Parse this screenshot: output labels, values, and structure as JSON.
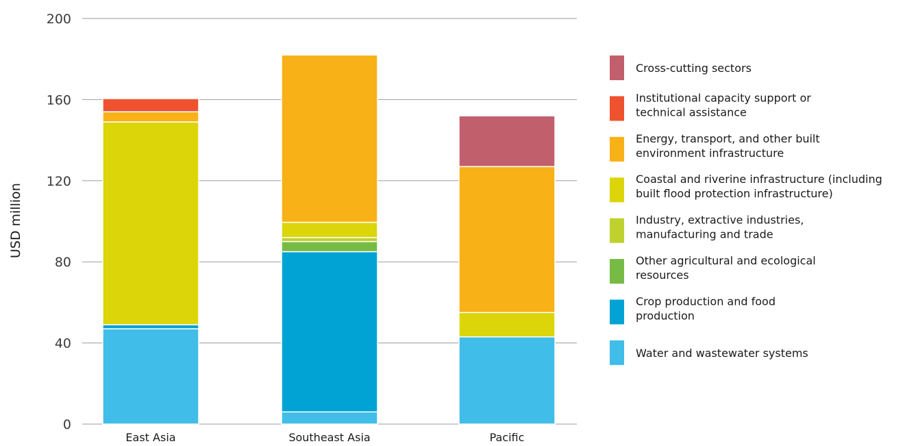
{
  "chart_data": {
    "type": "bar",
    "stacked": true,
    "categories": [
      "East Asia",
      "Southeast Asia",
      "Pacific"
    ],
    "ylabel": "USD  million",
    "xlabel": "",
    "ylim": [
      0,
      200
    ],
    "yticks": [
      "0",
      "40",
      "80",
      "120",
      "160",
      "200"
    ],
    "grid": true,
    "legend_position": "right",
    "series": [
      {
        "name": "Water and wastewater systems",
        "color": "#40bde8",
        "values": [
          47,
          6,
          43
        ]
      },
      {
        "name": "Crop production and food production",
        "color": "#00a3d4",
        "values": [
          2,
          79,
          0
        ]
      },
      {
        "name": "Other agricultural and ecological resources",
        "color": "#77bb44",
        "values": [
          0,
          5,
          0
        ]
      },
      {
        "name": "Industry, extractive industries, manufacturing and trade",
        "color": "#bfd12e",
        "values": [
          0,
          2,
          0
        ]
      },
      {
        "name": "Coastal and riverine infrastructure (including built flood protection infrastructure)",
        "color": "#dcd50a",
        "values": [
          100,
          7.5,
          12
        ]
      },
      {
        "name": "Energy, transport, and other built environment infrastructure",
        "color": "#f8b117",
        "values": [
          5,
          82.5,
          72
        ]
      },
      {
        "name": "Institutional capacity support or technical assistance",
        "color": "#ee522e",
        "values": [
          6.5,
          0,
          0
        ]
      },
      {
        "name": "Cross-cutting sectors",
        "color": "#c25f6d",
        "values": [
          0,
          0,
          25
        ]
      }
    ],
    "legend": [
      {
        "lines": [
          "Cross-cutting sectors"
        ],
        "color": "#c25f6d"
      },
      {
        "lines": [
          "Institutional capacity support or",
          "technical assistance"
        ],
        "color": "#ee522e"
      },
      {
        "lines": [
          "Energy, transport, and other built",
          "environment infrastructure"
        ],
        "color": "#f8b117"
      },
      {
        "lines": [
          "Coastal and riverine infrastructure (including",
          "built flood protection infrastructure)"
        ],
        "color": "#dcd50a"
      },
      {
        "lines": [
          "Industry, extractive industries,",
          "manufacturing and trade"
        ],
        "color": "#bfd12e"
      },
      {
        "lines": [
          "Other agricultural and ecological",
          "resources"
        ],
        "color": "#77bb44"
      },
      {
        "lines": [
          "Crop production and food",
          "production"
        ],
        "color": "#00a3d4"
      },
      {
        "lines": [
          "Water and wastewater systems"
        ],
        "color": "#40bde8"
      }
    ]
  }
}
